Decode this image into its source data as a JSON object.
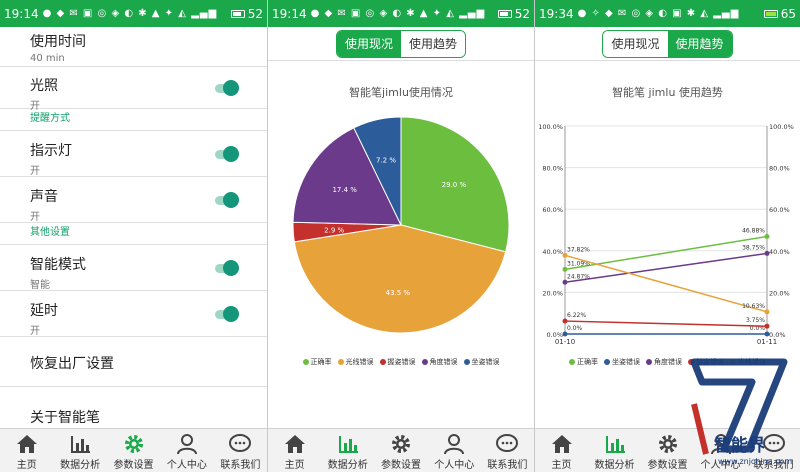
{
  "status_bars": [
    {
      "time": "19:14",
      "battery": "52"
    },
    {
      "time": "19:14",
      "battery": "52"
    },
    {
      "time": "19:34",
      "battery": "65"
    }
  ],
  "settings": {
    "use_time": {
      "title": "使用时间",
      "sub": "40 min"
    },
    "light": {
      "title": "光照",
      "sub": "开"
    },
    "section_remind": "提醒方式",
    "indicator": {
      "title": "指示灯",
      "sub": "开"
    },
    "sound": {
      "title": "声音",
      "sub": "开"
    },
    "section_other": "其他设置",
    "smart": {
      "title": "智能模式",
      "sub": "智能"
    },
    "delay": {
      "title": "延时",
      "sub": "开"
    },
    "reset": "恢复出厂设置",
    "about": "关于智能笔"
  },
  "tabs": [
    "主页",
    "数据分析",
    "参数设置",
    "个人中心",
    "联系我们"
  ],
  "segmented": {
    "current": "使用现况",
    "trend": "使用趋势"
  },
  "pie_title": "智能笔jimlu使用情况",
  "trend_title": "智能笔 jimlu 使用趋势",
  "legend_pie": [
    "正确率",
    "光线错误",
    "握姿错误",
    "角度错误",
    "坐姿错误"
  ],
  "legend_line": [
    "正确率",
    "坐姿错误",
    "角度错误",
    "握姿错误",
    "光线错误"
  ],
  "colors": {
    "green": "#6cbf3e",
    "orange": "#e8a23a",
    "red": "#c4302b",
    "purple": "#6b3a8a",
    "blue": "#2c5d9a",
    "accent": "#1aa84a"
  },
  "watermark": {
    "text": "智能界",
    "url": "www.znjchina.com"
  },
  "chart_data": [
    {
      "type": "pie",
      "title": "智能笔jimlu使用情况",
      "labels": [
        "正确率",
        "光线错误",
        "握姿错误",
        "角度错误",
        "坐姿错误"
      ],
      "values": [
        29.0,
        43.5,
        2.9,
        17.4,
        7.2
      ],
      "value_labels": [
        "29.0 %",
        "43.5 %",
        "2.9 %",
        "17.4 %",
        "7.2 %"
      ],
      "colors": [
        "#6cbf3e",
        "#e8a23a",
        "#c4302b",
        "#6b3a8a",
        "#2c5d9a"
      ]
    },
    {
      "type": "line",
      "title": "智能笔 jimlu 使用趋势",
      "x": [
        "01-10",
        "01-11"
      ],
      "ylim": [
        0,
        100
      ],
      "yticks": [
        "0.0%",
        "20.0%",
        "40.0%",
        "60.0%",
        "80.0%",
        "100.0%"
      ],
      "series": [
        {
          "name": "正确率",
          "color": "#6cbf3e",
          "values": [
            31.09,
            46.88
          ],
          "labels": [
            "31.09%",
            "46.88%"
          ]
        },
        {
          "name": "坐姿错误",
          "color": "#2c5d9a",
          "values": [
            0.0,
            0.0
          ],
          "labels": [
            "0.0%",
            "0.0%"
          ]
        },
        {
          "name": "角度错误",
          "color": "#6b3a8a",
          "values": [
            24.87,
            38.75
          ],
          "labels": [
            "24.87%",
            "38.75%"
          ]
        },
        {
          "name": "握姿错误",
          "color": "#c4302b",
          "values": [
            6.22,
            3.75
          ],
          "labels": [
            "6.22%",
            "3.75%"
          ]
        },
        {
          "name": "光线错误",
          "color": "#e8a23a",
          "values": [
            37.82,
            10.63
          ],
          "labels": [
            "37.82%",
            "10.63%"
          ]
        }
      ]
    }
  ]
}
